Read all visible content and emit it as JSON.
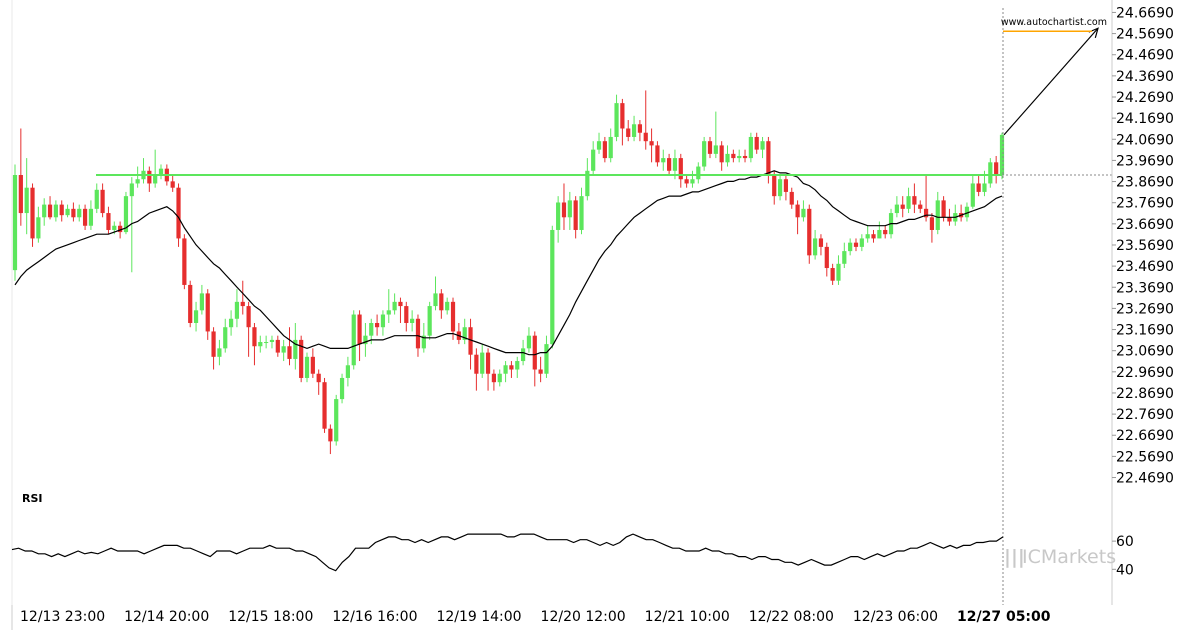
{
  "watermark": "www.autochartist.com",
  "brand": {
    "name_prefix": "IC",
    "name_suffix": "Markets",
    "color": "#c8c8c8"
  },
  "colors": {
    "bull": "#5ce65c",
    "bear": "#e62e2e",
    "support": "#5ce65c",
    "forecast_line": "#ffa500",
    "ma": "#000000",
    "rsi": "#000000",
    "grid": "#e6e6e6"
  },
  "chart_data": {
    "type": "candlestick",
    "title": "",
    "price_axis": {
      "ticks": [
        "24.6690",
        "24.5690",
        "24.4690",
        "24.3690",
        "24.2690",
        "24.1690",
        "24.0690",
        "23.9690",
        "23.8690",
        "23.7690",
        "23.6690",
        "23.5690",
        "23.4690",
        "23.3690",
        "23.2690",
        "23.1690",
        "23.0690",
        "22.9690",
        "22.8690",
        "22.7690",
        "22.6690",
        "22.5690",
        "22.4690"
      ],
      "range": [
        22.41,
        24.69
      ],
      "side": "right"
    },
    "time_axis": {
      "labels": [
        "12/13 23:00",
        "12/14 20:00",
        "12/15 18:00",
        "12/16 16:00",
        "12/19 14:00",
        "12/20 12:00",
        "12/21 10:00",
        "12/22 08:00",
        "12/23 06:00",
        "12/27 05:00"
      ],
      "highlighted": "12/27 05:00"
    },
    "candles": [
      [
        23.45,
        23.9,
        23.95,
        23.4
      ],
      [
        23.9,
        23.72,
        24.12,
        23.66
      ],
      [
        23.72,
        23.84,
        23.98,
        23.62
      ],
      [
        23.84,
        23.6,
        23.86,
        23.56
      ],
      [
        23.6,
        23.7,
        23.75,
        23.58
      ],
      [
        23.7,
        23.76,
        23.79,
        23.66
      ],
      [
        23.76,
        23.7,
        23.8,
        23.69
      ],
      [
        23.7,
        23.76,
        23.78,
        23.68
      ],
      [
        23.76,
        23.71,
        23.78,
        23.68
      ],
      [
        23.71,
        23.74,
        23.76,
        23.7
      ],
      [
        23.74,
        23.7,
        23.77,
        23.68
      ],
      [
        23.7,
        23.74,
        23.76,
        23.68
      ],
      [
        23.74,
        23.66,
        23.76,
        23.64
      ],
      [
        23.66,
        23.74,
        23.78,
        23.64
      ],
      [
        23.74,
        23.83,
        23.86,
        23.72
      ],
      [
        23.83,
        23.72,
        23.86,
        23.7
      ],
      [
        23.72,
        23.64,
        23.75,
        23.62
      ],
      [
        23.64,
        23.66,
        23.68,
        23.62
      ],
      [
        23.66,
        23.63,
        23.68,
        23.6
      ],
      [
        23.63,
        23.8,
        23.82,
        23.62
      ],
      [
        23.8,
        23.86,
        23.89,
        23.44
      ],
      [
        23.86,
        23.88,
        23.94,
        23.84
      ],
      [
        23.88,
        23.92,
        23.98,
        23.86
      ],
      [
        23.92,
        23.86,
        23.94,
        23.82
      ],
      [
        23.86,
        23.9,
        24.02,
        23.84
      ],
      [
        23.9,
        23.93,
        23.95,
        23.88
      ],
      [
        23.93,
        23.87,
        23.95,
        23.85
      ],
      [
        23.87,
        23.84,
        23.9,
        23.82
      ],
      [
        23.84,
        23.6,
        23.86,
        23.56
      ],
      [
        23.6,
        23.38,
        23.62,
        23.36
      ],
      [
        23.38,
        23.2,
        23.4,
        23.18
      ],
      [
        23.2,
        23.26,
        23.3,
        23.16
      ],
      [
        23.26,
        23.34,
        23.38,
        23.24
      ],
      [
        23.34,
        23.16,
        23.36,
        23.12
      ],
      [
        23.16,
        23.04,
        23.18,
        22.98
      ],
      [
        23.04,
        23.08,
        23.12,
        23.0
      ],
      [
        23.08,
        23.18,
        23.22,
        23.06
      ],
      [
        23.18,
        23.22,
        23.26,
        23.14
      ],
      [
        23.22,
        23.3,
        23.36,
        23.18
      ],
      [
        23.3,
        23.28,
        23.4,
        23.24
      ],
      [
        23.28,
        23.18,
        23.3,
        23.04
      ],
      [
        23.18,
        23.09,
        23.2,
        23.0
      ],
      [
        23.09,
        23.11,
        23.14,
        23.06
      ],
      [
        23.11,
        23.11,
        23.14,
        23.08
      ],
      [
        23.11,
        23.12,
        23.14,
        23.08
      ],
      [
        23.12,
        23.06,
        23.14,
        23.04
      ],
      [
        23.06,
        23.09,
        23.12,
        23.02
      ],
      [
        23.09,
        23.03,
        23.18,
        23.0
      ],
      [
        23.03,
        23.12,
        23.2,
        22.98
      ],
      [
        23.12,
        22.94,
        23.14,
        22.92
      ],
      [
        22.94,
        23.04,
        23.06,
        22.92
      ],
      [
        23.04,
        22.96,
        23.08,
        22.94
      ],
      [
        22.96,
        22.92,
        22.98,
        22.86
      ],
      [
        22.92,
        22.7,
        22.94,
        22.68
      ],
      [
        22.7,
        22.64,
        22.72,
        22.58
      ],
      [
        22.64,
        22.84,
        22.86,
        22.62
      ],
      [
        22.84,
        22.94,
        22.96,
        22.82
      ],
      [
        22.94,
        23.0,
        23.04,
        22.9
      ],
      [
        23.0,
        23.24,
        23.26,
        22.98
      ],
      [
        23.24,
        23.1,
        23.26,
        23.02
      ],
      [
        23.1,
        23.14,
        23.2,
        23.04
      ],
      [
        23.14,
        23.2,
        23.22,
        23.1
      ],
      [
        23.2,
        23.18,
        23.24,
        23.14
      ],
      [
        23.18,
        23.24,
        23.26,
        23.14
      ],
      [
        23.24,
        23.26,
        23.36,
        23.2
      ],
      [
        23.26,
        23.3,
        23.34,
        23.24
      ],
      [
        23.3,
        23.28,
        23.32,
        23.2
      ],
      [
        23.28,
        23.2,
        23.3,
        23.16
      ],
      [
        23.2,
        23.22,
        23.26,
        23.16
      ],
      [
        23.22,
        23.08,
        23.24,
        23.04
      ],
      [
        23.08,
        23.14,
        23.2,
        23.06
      ],
      [
        23.14,
        23.28,
        23.3,
        23.12
      ],
      [
        23.28,
        23.34,
        23.42,
        23.26
      ],
      [
        23.34,
        23.26,
        23.36,
        23.22
      ],
      [
        23.26,
        23.3,
        23.32,
        23.24
      ],
      [
        23.3,
        23.16,
        23.32,
        23.12
      ],
      [
        23.16,
        23.12,
        23.2,
        23.1
      ],
      [
        23.12,
        23.18,
        23.22,
        23.1
      ],
      [
        23.18,
        23.05,
        23.22,
        22.98
      ],
      [
        23.05,
        22.96,
        23.08,
        22.88
      ],
      [
        22.96,
        23.06,
        23.1,
        22.94
      ],
      [
        23.06,
        22.96,
        23.08,
        22.88
      ],
      [
        22.96,
        22.92,
        22.98,
        22.88
      ],
      [
        22.92,
        22.96,
        22.98,
        22.9
      ],
      [
        22.96,
        23.0,
        23.02,
        22.92
      ],
      [
        23.0,
        22.98,
        23.02,
        22.94
      ],
      [
        22.98,
        23.02,
        23.04,
        22.94
      ],
      [
        23.02,
        23.08,
        23.12,
        23.0
      ],
      [
        23.08,
        23.14,
        23.18,
        23.06
      ],
      [
        23.14,
        22.98,
        23.16,
        22.9
      ],
      [
        22.98,
        22.96,
        23.04,
        22.92
      ],
      [
        22.96,
        23.1,
        23.14,
        22.94
      ],
      [
        23.1,
        23.64,
        23.66,
        23.08
      ],
      [
        23.64,
        23.77,
        23.8,
        23.58
      ],
      [
        23.77,
        23.7,
        23.86,
        23.64
      ],
      [
        23.7,
        23.78,
        23.82,
        23.64
      ],
      [
        23.78,
        23.64,
        23.8,
        23.6
      ],
      [
        23.64,
        23.8,
        23.84,
        23.62
      ],
      [
        23.8,
        23.92,
        23.98,
        23.78
      ],
      [
        23.92,
        24.02,
        24.06,
        23.9
      ],
      [
        24.02,
        24.06,
        24.1,
        24.0
      ],
      [
        24.06,
        23.98,
        24.08,
        23.96
      ],
      [
        23.98,
        24.08,
        24.12,
        23.96
      ],
      [
        24.08,
        24.24,
        24.28,
        24.06
      ],
      [
        24.24,
        24.12,
        24.26,
        24.04
      ],
      [
        24.12,
        24.08,
        24.16,
        24.06
      ],
      [
        24.08,
        24.14,
        24.18,
        24.06
      ],
      [
        24.14,
        24.1,
        24.16,
        24.06
      ],
      [
        24.1,
        24.06,
        24.3,
        24.02
      ],
      [
        24.06,
        24.04,
        24.12,
        23.96
      ],
      [
        24.04,
        23.96,
        24.06,
        23.94
      ],
      [
        23.96,
        23.98,
        24.02,
        23.92
      ],
      [
        23.98,
        23.92,
        24.0,
        23.9
      ],
      [
        23.92,
        23.98,
        24.02,
        23.88
      ],
      [
        23.98,
        23.88,
        24.0,
        23.84
      ],
      [
        23.88,
        23.86,
        23.9,
        23.84
      ],
      [
        23.86,
        23.88,
        23.92,
        23.84
      ],
      [
        23.88,
        23.94,
        23.96,
        23.86
      ],
      [
        23.94,
        24.06,
        24.08,
        23.92
      ],
      [
        24.06,
        24.0,
        24.08,
        23.98
      ],
      [
        24.0,
        24.04,
        24.2,
        23.98
      ],
      [
        24.04,
        23.96,
        24.06,
        23.92
      ],
      [
        23.96,
        24.0,
        24.04,
        23.94
      ],
      [
        24.0,
        23.98,
        24.02,
        23.96
      ],
      [
        23.98,
        23.99,
        24.02,
        23.96
      ],
      [
        23.99,
        23.98,
        24.02,
        23.96
      ],
      [
        23.98,
        24.08,
        24.1,
        23.96
      ],
      [
        24.08,
        24.02,
        24.1,
        24.0
      ],
      [
        24.02,
        24.06,
        24.08,
        23.98
      ],
      [
        24.06,
        23.9,
        24.08,
        23.86
      ],
      [
        23.9,
        23.8,
        23.92,
        23.76
      ],
      [
        23.8,
        23.88,
        23.9,
        23.78
      ],
      [
        23.88,
        23.82,
        23.9,
        23.78
      ],
      [
        23.82,
        23.76,
        23.84,
        23.74
      ],
      [
        23.76,
        23.7,
        23.78,
        23.62
      ],
      [
        23.7,
        23.74,
        23.78,
        23.68
      ],
      [
        23.74,
        23.52,
        23.76,
        23.48
      ],
      [
        23.52,
        23.6,
        23.64,
        23.5
      ],
      [
        23.6,
        23.56,
        23.62,
        23.52
      ],
      [
        23.56,
        23.46,
        23.58,
        23.42
      ],
      [
        23.46,
        23.4,
        23.48,
        23.38
      ],
      [
        23.4,
        23.48,
        23.52,
        23.38
      ],
      [
        23.48,
        23.54,
        23.58,
        23.46
      ],
      [
        23.54,
        23.58,
        23.6,
        23.52
      ],
      [
        23.58,
        23.56,
        23.6,
        23.54
      ],
      [
        23.56,
        23.6,
        23.62,
        23.54
      ],
      [
        23.6,
        23.62,
        23.66,
        23.58
      ],
      [
        23.62,
        23.6,
        23.64,
        23.58
      ],
      [
        23.6,
        23.64,
        23.68,
        23.6
      ],
      [
        23.64,
        23.62,
        23.66,
        23.6
      ],
      [
        23.62,
        23.72,
        23.74,
        23.6
      ],
      [
        23.72,
        23.76,
        23.8,
        23.7
      ],
      [
        23.76,
        23.74,
        23.8,
        23.7
      ],
      [
        23.74,
        23.8,
        23.84,
        23.72
      ],
      [
        23.8,
        23.76,
        23.86,
        23.72
      ],
      [
        23.76,
        23.74,
        23.78,
        23.72
      ],
      [
        23.74,
        23.7,
        23.9,
        23.68
      ],
      [
        23.7,
        23.64,
        23.72,
        23.58
      ],
      [
        23.64,
        23.78,
        23.82,
        23.62
      ],
      [
        23.78,
        23.7,
        23.8,
        23.68
      ],
      [
        23.7,
        23.68,
        23.74,
        23.66
      ],
      [
        23.68,
        23.72,
        23.76,
        23.66
      ],
      [
        23.72,
        23.7,
        23.76,
        23.68
      ],
      [
        23.7,
        23.75,
        23.77,
        23.68
      ],
      [
        23.75,
        23.86,
        23.9,
        23.74
      ],
      [
        23.86,
        23.82,
        23.9,
        23.8
      ],
      [
        23.82,
        23.86,
        23.92,
        23.8
      ],
      [
        23.86,
        23.96,
        23.98,
        23.84
      ],
      [
        23.96,
        23.9,
        23.99,
        23.86
      ],
      [
        23.9,
        24.09,
        24.1,
        23.88
      ]
    ],
    "moving_average": [
      23.38,
      23.42,
      23.45,
      23.47,
      23.49,
      23.51,
      23.53,
      23.55,
      23.56,
      23.57,
      23.58,
      23.59,
      23.6,
      23.61,
      23.62,
      23.62,
      23.62,
      23.63,
      23.64,
      23.65,
      23.67,
      23.68,
      23.7,
      23.72,
      23.73,
      23.74,
      23.75,
      23.73,
      23.7,
      23.65,
      23.61,
      23.57,
      23.54,
      23.51,
      23.48,
      23.46,
      23.43,
      23.4,
      23.37,
      23.34,
      23.31,
      23.28,
      23.26,
      23.23,
      23.2,
      23.17,
      23.14,
      23.12,
      23.1,
      23.09,
      23.08,
      23.09,
      23.1,
      23.09,
      23.08,
      23.08,
      23.08,
      23.08,
      23.09,
      23.1,
      23.11,
      23.12,
      23.12,
      23.12,
      23.13,
      23.14,
      23.14,
      23.14,
      23.14,
      23.14,
      23.13,
      23.13,
      23.13,
      23.14,
      23.15,
      23.15,
      23.14,
      23.13,
      23.12,
      23.11,
      23.1,
      23.09,
      23.08,
      23.07,
      23.06,
      23.06,
      23.06,
      23.06,
      23.05,
      23.05,
      23.06,
      23.06,
      23.09,
      23.14,
      23.19,
      23.24,
      23.3,
      23.35,
      23.4,
      23.45,
      23.5,
      23.54,
      23.57,
      23.61,
      23.64,
      23.67,
      23.7,
      23.72,
      23.74,
      23.76,
      23.78,
      23.79,
      23.8,
      23.8,
      23.8,
      23.81,
      23.82,
      23.82,
      23.83,
      23.84,
      23.85,
      23.86,
      23.87,
      23.87,
      23.88,
      23.88,
      23.89,
      23.89,
      23.9,
      23.91,
      23.92,
      23.91,
      23.91,
      23.9,
      23.89,
      23.86,
      23.85,
      23.83,
      23.8,
      23.78,
      23.75,
      23.73,
      23.71,
      23.69,
      23.68,
      23.67,
      23.66,
      23.66,
      23.66,
      23.66,
      23.67,
      23.67,
      23.68,
      23.69,
      23.69,
      23.7,
      23.71,
      23.71,
      23.7,
      23.7,
      23.7,
      23.7,
      23.71,
      23.72,
      23.73,
      23.74,
      23.75,
      23.77,
      23.79,
      23.8
    ],
    "support_level": 23.9,
    "forecast": {
      "target": 24.58,
      "start_price": 24.09
    },
    "rsi": {
      "label": "RSI",
      "ticks": [
        "60",
        "40"
      ],
      "range": [
        31,
        75
      ],
      "values": [
        54,
        55,
        53,
        53,
        51,
        51,
        49,
        51,
        49,
        51,
        53,
        51,
        52,
        51,
        53,
        55,
        53,
        53,
        53,
        53,
        51,
        53,
        55,
        57,
        57,
        57,
        55,
        55,
        53,
        51,
        49,
        53,
        53,
        53,
        51,
        53,
        55,
        55,
        55,
        57,
        55,
        55,
        55,
        53,
        53,
        51,
        49,
        45,
        41,
        39,
        45,
        49,
        55,
        55,
        55,
        59,
        61,
        63,
        63,
        61,
        61,
        59,
        61,
        59,
        61,
        63,
        63,
        61,
        63,
        65,
        65,
        65,
        65,
        65,
        65,
        63,
        63,
        65,
        65,
        65,
        63,
        61,
        61,
        61,
        61,
        59,
        61,
        61,
        59,
        57,
        59,
        57,
        59,
        63,
        65,
        63,
        61,
        61,
        59,
        57,
        55,
        55,
        53,
        53,
        53,
        55,
        53,
        53,
        51,
        51,
        49,
        49,
        47,
        49,
        49,
        47,
        47,
        45,
        45,
        43,
        45,
        47,
        45,
        43,
        43,
        45,
        47,
        49,
        49,
        47,
        49,
        51,
        49,
        51,
        53,
        53,
        55,
        55,
        57,
        59,
        57,
        55,
        57,
        55,
        57,
        57,
        59,
        59,
        60,
        60,
        63
      ]
    }
  }
}
